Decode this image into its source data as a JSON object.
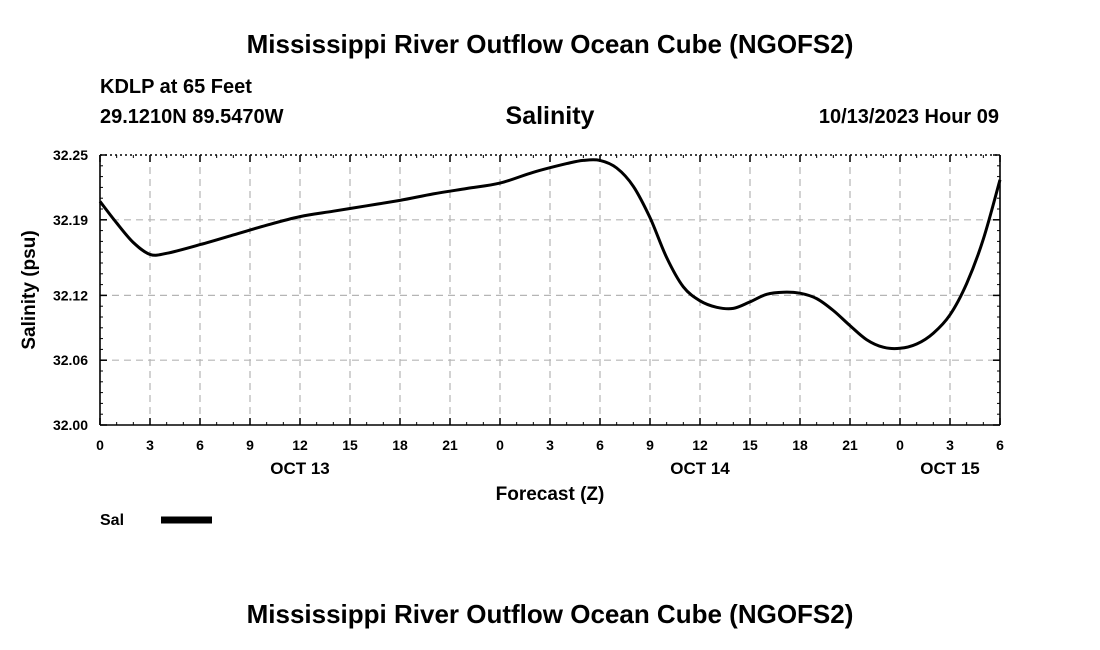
{
  "header": {
    "title": "Mississippi River Outflow Ocean Cube (NGOFS2)",
    "station": "KDLP at 65 Feet",
    "coords": "29.1210N  89.5470W",
    "datetime": "10/13/2023 Hour 09"
  },
  "footer": {
    "title": "Mississippi River Outflow Ocean Cube (NGOFS2)"
  },
  "chart_data": {
    "type": "line",
    "title": "Salinity",
    "xlabel": "Forecast (Z)",
    "ylabel": "Salinity (psu)",
    "ylim": [
      32.0,
      32.25
    ],
    "xlim": [
      0,
      54
    ],
    "yticks": [
      32.0,
      32.06,
      32.12,
      32.19,
      32.25
    ],
    "ytick_labels": [
      "32.00",
      "32.06",
      "32.12",
      "32.19",
      "32.25"
    ],
    "xticks": [
      0,
      3,
      6,
      9,
      12,
      15,
      18,
      21,
      24,
      27,
      30,
      33,
      36,
      39,
      42,
      45,
      48,
      51,
      54
    ],
    "xtick_labels": [
      "0",
      "3",
      "6",
      "9",
      "12",
      "15",
      "18",
      "21",
      "0",
      "3",
      "6",
      "9",
      "12",
      "15",
      "18",
      "21",
      "0",
      "3",
      "6"
    ],
    "date_labels": [
      {
        "x": 12,
        "label": "OCT 13"
      },
      {
        "x": 36,
        "label": "OCT 14"
      },
      {
        "x": 51,
        "label": "OCT 15"
      }
    ],
    "grid": true,
    "legend": {
      "position": "bottom-left",
      "label": "Sal"
    },
    "series": [
      {
        "name": "Sal",
        "x": [
          0,
          1,
          2,
          3,
          4,
          6,
          8,
          10,
          12,
          14,
          16,
          18,
          20,
          22,
          24,
          26,
          28,
          29,
          30,
          31,
          32,
          33,
          34,
          35,
          36,
          37,
          38,
          39,
          40,
          41,
          42,
          43,
          44,
          45,
          46,
          47,
          48,
          49,
          50,
          51,
          52,
          53,
          54
        ],
        "values": [
          32.207,
          32.187,
          32.169,
          32.158,
          32.159,
          32.167,
          32.176,
          32.185,
          32.193,
          32.198,
          32.203,
          32.208,
          32.214,
          32.219,
          32.224,
          32.234,
          32.242,
          32.245,
          32.245,
          32.238,
          32.221,
          32.192,
          32.155,
          32.128,
          32.115,
          32.109,
          32.108,
          32.114,
          32.121,
          32.123,
          32.122,
          32.117,
          32.106,
          32.092,
          32.079,
          32.072,
          32.071,
          32.075,
          32.085,
          32.102,
          32.131,
          32.172,
          32.227
        ]
      }
    ]
  }
}
